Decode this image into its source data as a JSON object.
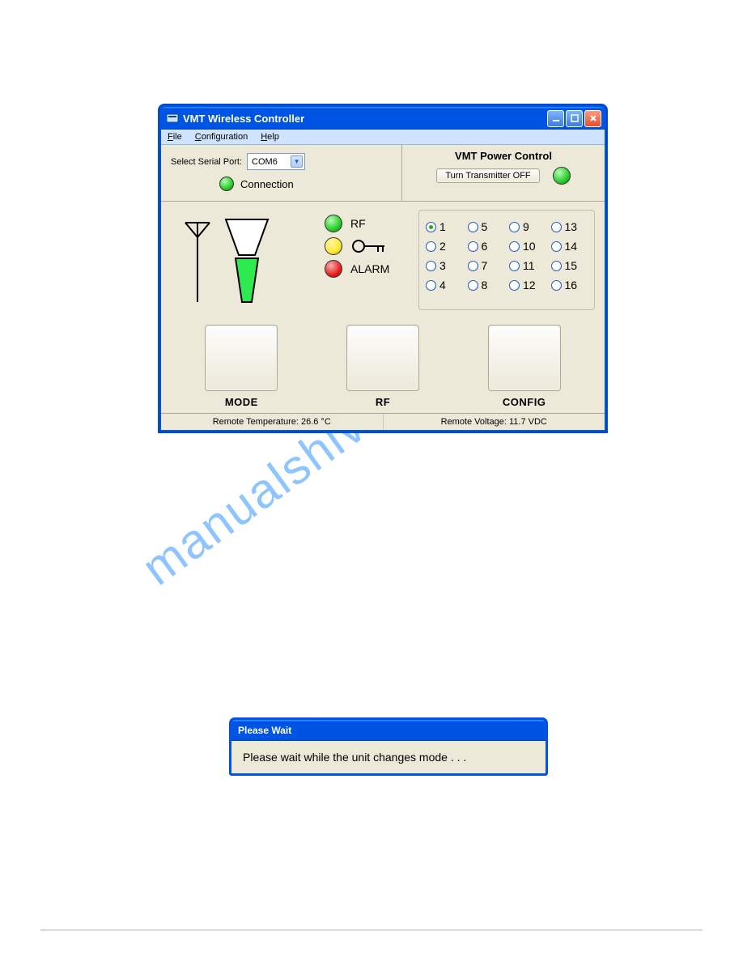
{
  "colors": {
    "window_chrome": "#0054e3",
    "body_bg": "#ece9d8",
    "menubar_bg": "#cfe3ff",
    "led_green": "#29cc29",
    "led_yellow": "#ffe933",
    "led_red": "#e52020",
    "led_off": "#bcbcbc",
    "funnel_fill": "#2eea4e",
    "watermark_color": "#3596ff"
  },
  "watermark": "manualshive.com",
  "window": {
    "title": "VMT Wireless Controller",
    "menu": {
      "file": "File",
      "configuration": "Configuration",
      "help": "Help"
    },
    "serial": {
      "label": "Select Serial Port:",
      "value": "COM6"
    },
    "connection": {
      "label": "Connection",
      "led_color": "#29cc29"
    },
    "power": {
      "title": "VMT Power Control",
      "button": "Turn Transmitter OFF",
      "led_color": "#29cc29"
    },
    "status_leds": {
      "rf": {
        "label": "RF",
        "color": "#29cc29"
      },
      "key": {
        "label": "",
        "color": "#ffe933"
      },
      "alarm": {
        "label": "ALARM",
        "color": "#e52020"
      }
    },
    "channels": {
      "selected": 1,
      "items": [
        1,
        2,
        3,
        4,
        5,
        6,
        7,
        8,
        9,
        10,
        11,
        12,
        13,
        14,
        15,
        16
      ]
    },
    "big_buttons": {
      "mode": "MODE",
      "rf": "RF",
      "config": "CONFIG"
    },
    "statusbar": {
      "temp": "Remote Temperature: 26.6 °C",
      "volt": "Remote Voltage: 11.7 VDC"
    }
  },
  "dialog": {
    "title": "Please Wait",
    "message": "Please wait while the unit changes mode . . ."
  }
}
